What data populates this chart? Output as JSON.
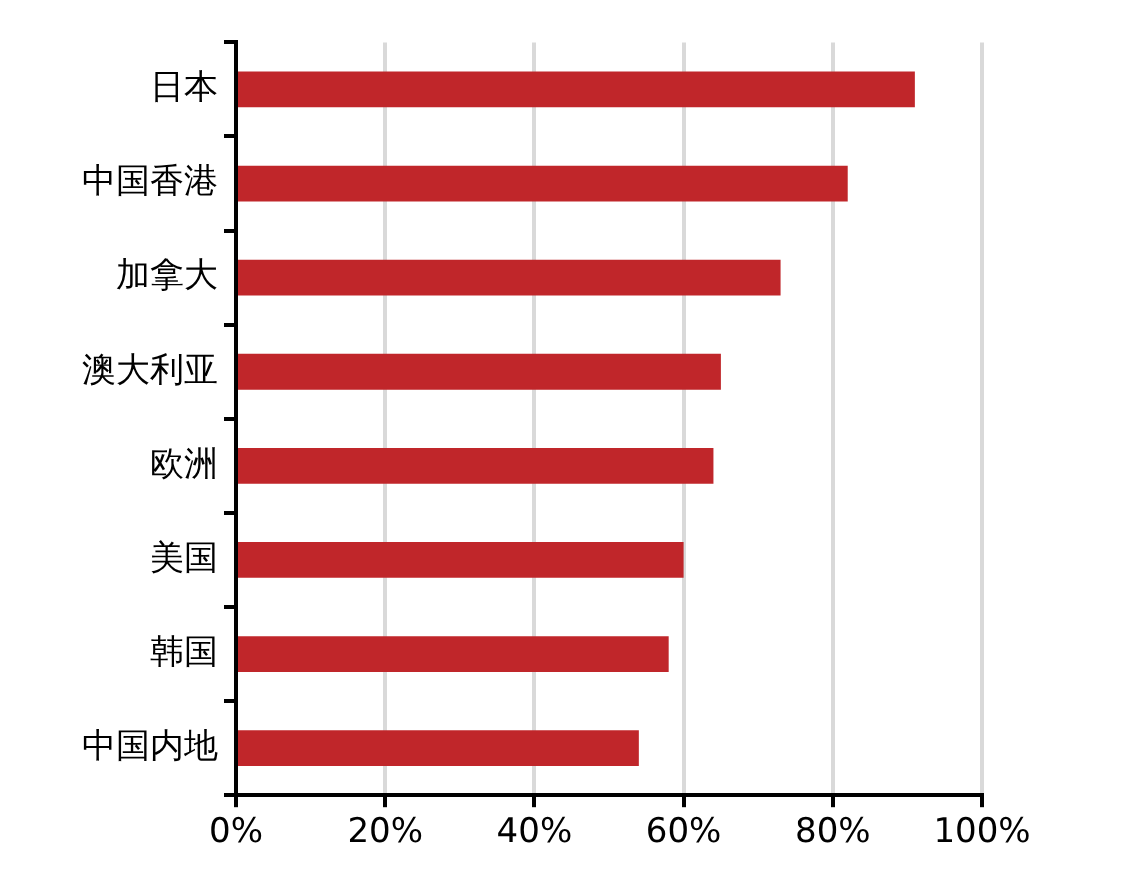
{
  "chart_data": {
    "type": "bar",
    "orientation": "horizontal",
    "categories": [
      "日本",
      "中国香港",
      "加拿大",
      "澳大利亚",
      "欧洲",
      "美国",
      "韩国",
      "中国内地"
    ],
    "values": [
      91,
      82,
      73,
      65,
      64,
      60,
      58,
      54
    ],
    "color": "#c0262a",
    "xlim": [
      0,
      100
    ],
    "xticks": [
      {
        "value": 0,
        "label": "0%"
      },
      {
        "value": 20,
        "label": "20%"
      },
      {
        "value": 40,
        "label": "40%"
      },
      {
        "value": 60,
        "label": "60%"
      },
      {
        "value": 80,
        "label": "80%"
      },
      {
        "value": 100,
        "label": "100%"
      }
    ],
    "grid": "x",
    "legend": false
  }
}
